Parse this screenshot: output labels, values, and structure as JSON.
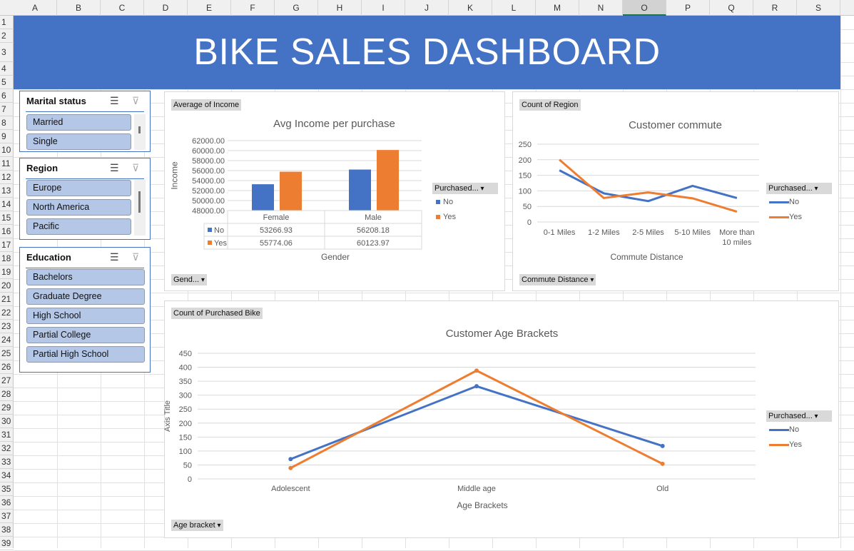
{
  "sheet": {
    "columns": [
      "A",
      "B",
      "C",
      "D",
      "E",
      "F",
      "G",
      "H",
      "I",
      "J",
      "K",
      "L",
      "M",
      "N",
      "O",
      "P",
      "Q",
      "R",
      "S"
    ],
    "selected_column": "O",
    "rows": 39
  },
  "banner": {
    "title": "BIKE SALES DASHBOARD"
  },
  "colors": {
    "no": "#4472c4",
    "yes": "#ed7d31",
    "slicer_item": "#b4c7e7"
  },
  "slicers": [
    {
      "title": "Marital status",
      "items": [
        "Married",
        "Single"
      ]
    },
    {
      "title": "Region",
      "items": [
        "Europe",
        "North America",
        "Pacific"
      ]
    },
    {
      "title": "Education",
      "items": [
        "Bachelors",
        "Graduate Degree",
        "High School",
        "Partial College",
        "Partial High School"
      ]
    }
  ],
  "charts": {
    "income": {
      "field_button": "Average of Income",
      "axis_button": "Gend...",
      "legend_button": "Purchased...",
      "table_headers": [
        "Female",
        "Male"
      ],
      "table_rows": [
        {
          "label": "No",
          "values": [
            "53266.93",
            "56208.18"
          ]
        },
        {
          "label": "Yes",
          "values": [
            "55774.06",
            "60123.97"
          ]
        }
      ]
    },
    "commute": {
      "field_button": "Count of Region",
      "axis_button": "Commute Distance",
      "legend_button": "Purchased..."
    },
    "age": {
      "field_button": "Count of Purchased Bike",
      "axis_button": "Age bracket",
      "legend_button": "Purchased..."
    }
  },
  "chart_data": [
    {
      "type": "bar",
      "title": "Avg Income per purchase",
      "xlabel": "Gender",
      "ylabel": "Income",
      "categories": [
        "Female",
        "Male"
      ],
      "ylim": [
        48000,
        62000
      ],
      "yticks": [
        "62000.00",
        "60000.00",
        "58000.00",
        "56000.00",
        "54000.00",
        "52000.00",
        "50000.00",
        "48000.00"
      ],
      "series": [
        {
          "name": "No",
          "values": [
            53266.93,
            56208.18
          ]
        },
        {
          "name": "Yes",
          "values": [
            55774.06,
            60123.97
          ]
        }
      ],
      "legend": "right",
      "grid": true
    },
    {
      "type": "line",
      "title": "Customer commute",
      "xlabel": "Commute Distance",
      "ylabel": "",
      "categories": [
        "0-1 Miles",
        "1-2 Miles",
        "2-5 Miles",
        "5-10 Miles",
        "More than 10 miles"
      ],
      "ylim": [
        0,
        250
      ],
      "yticks": [
        "250",
        "200",
        "150",
        "100",
        "50",
        "0"
      ],
      "series": [
        {
          "name": "No",
          "values": [
            166,
            92,
            67,
            116,
            77
          ]
        },
        {
          "name": "Yes",
          "values": [
            200,
            77,
            95,
            76,
            33
          ]
        }
      ],
      "legend": "right",
      "grid": true
    },
    {
      "type": "line",
      "title": "Customer Age Brackets",
      "xlabel": "Age Brackets",
      "ylabel": "Axis Title",
      "categories": [
        "Adolescent",
        "Middle age",
        "Old"
      ],
      "ylim": [
        0,
        450
      ],
      "yticks": [
        "450",
        "400",
        "350",
        "300",
        "250",
        "200",
        "150",
        "100",
        "50",
        "0"
      ],
      "series": [
        {
          "name": "No",
          "values": [
            71,
            332,
            118
          ]
        },
        {
          "name": "Yes",
          "values": [
            39,
            388,
            54
          ]
        }
      ],
      "legend": "right",
      "grid": true
    }
  ]
}
